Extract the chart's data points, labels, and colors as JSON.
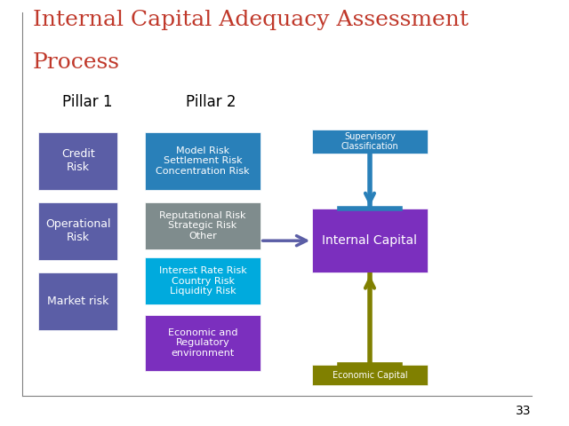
{
  "title_line1": "Internal Capital Adequacy Assessment",
  "title_line2": "Process",
  "title_color": "#c0392b",
  "bg_color": "#ffffff",
  "pillar1_label": "Pillar 1",
  "pillar2_label": "Pillar 2",
  "pillar1_color": "#5b5ea6",
  "pillar2_box1_color": "#2980b9",
  "pillar2_box2_color": "#7f8c8d",
  "pillar2_box3_color": "#00aadd",
  "pillar2_box4_color": "#7b2fbe",
  "internal_capital_color": "#7b2fbe",
  "arrow_color": "#5b5ea6",
  "down_arrow_color": "#2980b9",
  "up_arrow_color": "#808000",
  "page_number": "33"
}
